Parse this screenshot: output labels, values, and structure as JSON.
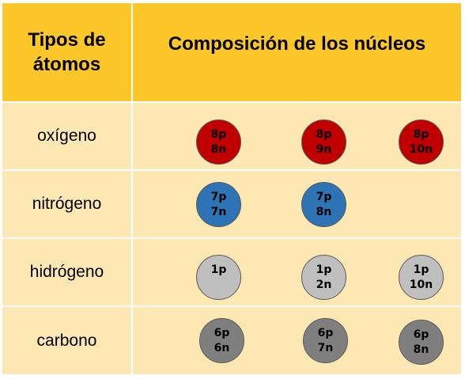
{
  "header": {
    "col1_line1": "Tipos de",
    "col1_line2": "átomos",
    "col2": "Composición de los núcleos"
  },
  "rows": [
    {
      "label": "oxígeno",
      "nuclei": [
        {
          "p": "8p",
          "n": "8n"
        },
        {
          "p": "8p",
          "n": "9n"
        },
        {
          "p": "8p",
          "n": "10n"
        }
      ]
    },
    {
      "label": "nitrógeno",
      "nuclei": [
        {
          "p": "7p",
          "n": "7n"
        },
        {
          "p": "7p",
          "n": "8n"
        }
      ]
    },
    {
      "label": "hidrógeno",
      "nuclei": [
        {
          "p": "1p",
          "n": ""
        },
        {
          "p": "1p",
          "n": "2n"
        },
        {
          "p": "1p",
          "n": "10n"
        }
      ]
    },
    {
      "label": "carbono",
      "nuclei": [
        {
          "p": "6p",
          "n": "6n"
        },
        {
          "p": "6p",
          "n": "7n"
        },
        {
          "p": "6p",
          "n": "8n"
        }
      ]
    }
  ],
  "colors": {
    "header_bg": "#fdc72a",
    "row_bg": "#fde8b3",
    "oxygen": "#c00000",
    "nitrogen": "#2e74b5",
    "hydrogen": "#bfbfbf",
    "carbon": "#7f7f7f"
  }
}
